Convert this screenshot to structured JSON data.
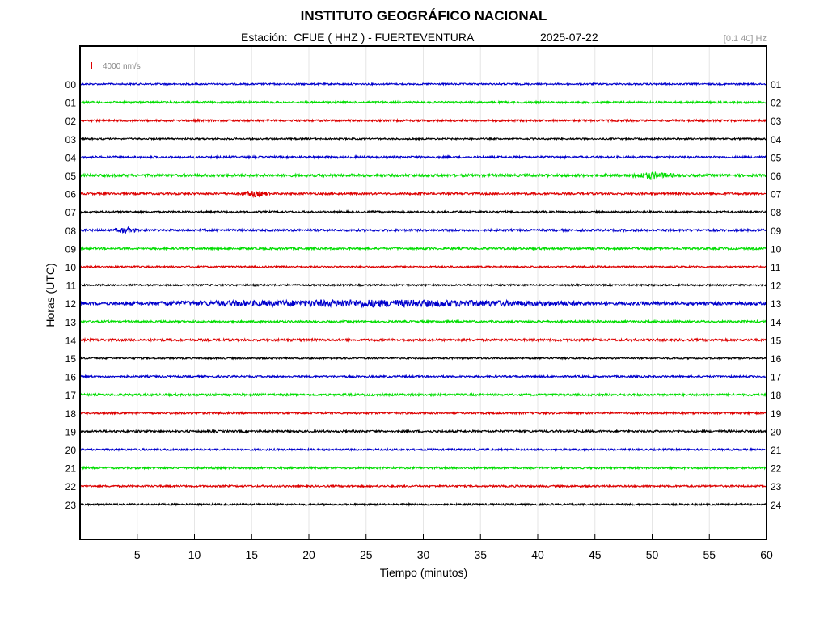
{
  "header": {
    "title": "INSTITUTO GEOGRÁFICO NACIONAL",
    "station": "Estación:  CFUE ( HHZ ) - FUERTEVENTURA",
    "date": "2025-07-22",
    "filter": "[0.1 40] Hz"
  },
  "chart_data": {
    "type": "line",
    "title": "INSTITUTO GEOGRÁFICO NACIONAL",
    "xlabel": "Tiempo (minutos)",
    "ylabel": "Horas (UTC)",
    "xlim": [
      0,
      60
    ],
    "x_ticks": [
      5,
      10,
      15,
      20,
      25,
      30,
      35,
      40,
      45,
      50,
      55,
      60
    ],
    "grid": true,
    "scale": {
      "label": "4000 nm/s",
      "color": "#dd0000"
    },
    "left_labels": [
      "00",
      "01",
      "02",
      "03",
      "04",
      "05",
      "06",
      "07",
      "08",
      "09",
      "10",
      "11",
      "12",
      "13",
      "14",
      "15",
      "16",
      "17",
      "18",
      "19",
      "20",
      "21",
      "22",
      "23"
    ],
    "right_labels": [
      "01",
      "02",
      "03",
      "04",
      "05",
      "06",
      "07",
      "08",
      "09",
      "10",
      "11",
      "12",
      "13",
      "14",
      "15",
      "16",
      "17",
      "18",
      "19",
      "20",
      "21",
      "22",
      "23",
      "24"
    ],
    "trace_colors": [
      "#0000cc",
      "#00dd00",
      "#dd0000",
      "#000000"
    ],
    "series": [
      {
        "hour": "00",
        "amplitude": 1.0
      },
      {
        "hour": "01",
        "amplitude": 1.2
      },
      {
        "hour": "02",
        "amplitude": 1.2
      },
      {
        "hour": "03",
        "amplitude": 1.0
      },
      {
        "hour": "04",
        "amplitude": 1.3
      },
      {
        "hour": "05",
        "amplitude": 1.6,
        "burst_minutes": [
          48,
          52
        ]
      },
      {
        "hour": "06",
        "amplitude": 1.3,
        "burst_minutes": [
          14,
          16.5
        ]
      },
      {
        "hour": "07",
        "amplitude": 1.2
      },
      {
        "hour": "08",
        "amplitude": 1.3,
        "burst_minutes": [
          3,
          5
        ]
      },
      {
        "hour": "09",
        "amplitude": 1.3
      },
      {
        "hour": "10",
        "amplitude": 1.0
      },
      {
        "hour": "11",
        "amplitude": 1.0
      },
      {
        "hour": "12",
        "amplitude": 2.0,
        "burst_minutes": [
          7,
          45
        ]
      },
      {
        "hour": "13",
        "amplitude": 1.3
      },
      {
        "hour": "14",
        "amplitude": 1.4
      },
      {
        "hour": "15",
        "amplitude": 1.0
      },
      {
        "hour": "16",
        "amplitude": 1.1
      },
      {
        "hour": "17",
        "amplitude": 1.3
      },
      {
        "hour": "18",
        "amplitude": 1.2
      },
      {
        "hour": "19",
        "amplitude": 1.3
      },
      {
        "hour": "20",
        "amplitude": 1.1
      },
      {
        "hour": "21",
        "amplitude": 1.2
      },
      {
        "hour": "22",
        "amplitude": 1.1
      },
      {
        "hour": "23",
        "amplitude": 1.1
      }
    ]
  }
}
